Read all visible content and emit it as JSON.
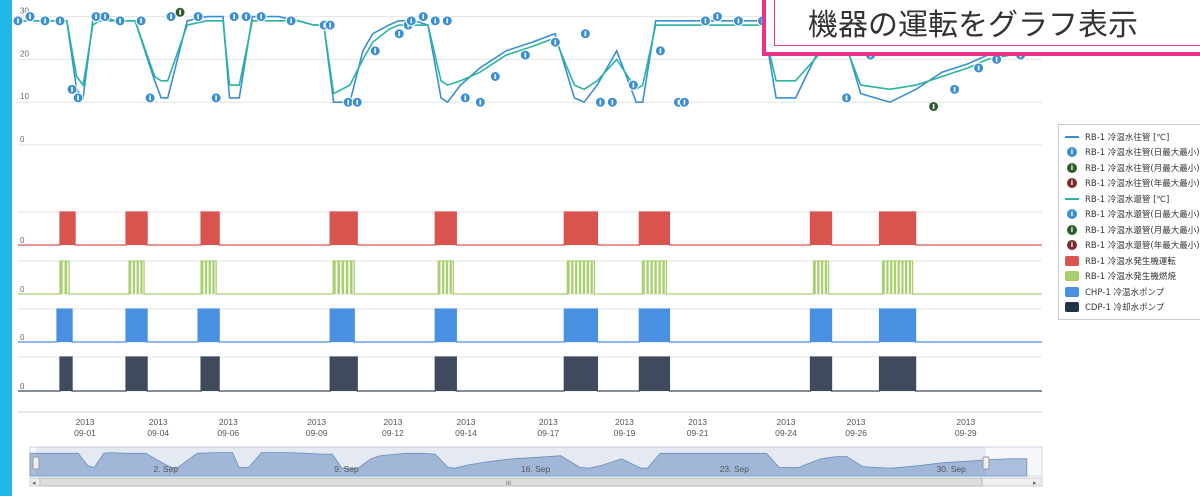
{
  "callout": {
    "text": "機器の運転をグラフ表示"
  },
  "legend": {
    "items": [
      {
        "label": "RB-1 冷温水往管 [℃]",
        "symbol": "line",
        "color": "#3a8fd4"
      },
      {
        "label": "RB-1 冷温水往管(日最大最小)",
        "symbol": "circle",
        "color": "#3a8fd4",
        "glyph": "i"
      },
      {
        "label": "RB-1 冷温水往管(月最大最小)",
        "symbol": "circle",
        "color": "#2f5a2a",
        "glyph": "i"
      },
      {
        "label": "RB-1 冷温水往管(年最大最小)",
        "symbol": "circle",
        "color": "#7a2a2a",
        "glyph": "i"
      },
      {
        "label": "RB-1 冷温水還管 [℃]",
        "symbol": "line",
        "color": "#2ab5a0"
      },
      {
        "label": "RB-1 冷温水還管(日最大最小)",
        "symbol": "circle",
        "color": "#3a8fd4",
        "glyph": "i"
      },
      {
        "label": "RB-1 冷温水還管(月最大最小)",
        "symbol": "circle",
        "color": "#2f5a2a",
        "glyph": "i"
      },
      {
        "label": "RB-1 冷温水還管(年最大最小)",
        "symbol": "circle",
        "color": "#7a2a2a",
        "glyph": "i"
      },
      {
        "label": "RB-1 冷温水発生機運転",
        "symbol": "rect",
        "color": "#d9534f"
      },
      {
        "label": "RB-1 冷温水発生機燃焼",
        "symbol": "rect",
        "color": "#a8cf6e"
      },
      {
        "label": "CHP-1 冷温水ポンプ",
        "symbol": "rect",
        "color": "#4a90e2"
      },
      {
        "label": "CDP-1 冷却水ポンプ",
        "symbol": "rect",
        "color": "#243246"
      }
    ]
  },
  "chart_data": {
    "type": "line",
    "x_range": [
      "2013-08-30",
      "2013-09-30"
    ],
    "temperature": {
      "y_ticks": [
        "30",
        "20",
        "10",
        "0"
      ],
      "ylim": [
        0,
        32
      ],
      "series": [
        {
          "color": "#3a8fd4",
          "x": [
            0,
            0.3,
            1.5,
            1.8,
            2.0,
            2.3,
            2.5,
            3.0,
            3.6,
            4.2,
            4.4,
            4.6,
            5.2,
            5.8,
            6.3,
            6.5,
            6.8,
            7.2,
            8.0,
            8.6,
            9.1,
            9.4,
            9.7,
            10.2,
            10.6,
            10.9,
            11.4,
            11.7,
            12.2,
            12.6,
            13.0,
            13.2,
            13.6,
            14.2,
            15.0,
            15.8,
            16.5,
            17.1,
            17.4,
            17.8,
            18.4,
            19.0,
            19.2,
            19.6,
            20.2,
            20.8,
            21.6,
            22.3,
            22.7,
            22.9,
            23.3,
            23.9,
            24.6,
            25.1,
            25.4,
            25.9,
            26.8,
            27.6,
            28.4,
            29.2,
            29.8,
            30.5,
            31.0
          ],
          "y": [
            29,
            29,
            29,
            13,
            11,
            29,
            30,
            29,
            29,
            15,
            11,
            11,
            29,
            30,
            30,
            11,
            11,
            30,
            30,
            29,
            28,
            28,
            10,
            10,
            22,
            26,
            28,
            29,
            29,
            28,
            11,
            10,
            14,
            18,
            22,
            24,
            26,
            11,
            10,
            14,
            22,
            10,
            10,
            29,
            29,
            29,
            29,
            29,
            29,
            29,
            11,
            11,
            22,
            25,
            25,
            12,
            10,
            13,
            17,
            19,
            21,
            22,
            22
          ]
        },
        {
          "color": "#2ab5a0",
          "x": [
            0,
            0.3,
            1.5,
            1.8,
            2.0,
            2.3,
            2.5,
            3.0,
            3.6,
            4.2,
            4.4,
            4.6,
            5.2,
            5.8,
            6.3,
            6.5,
            6.8,
            7.2,
            8.0,
            8.6,
            9.1,
            9.4,
            9.7,
            10.2,
            10.6,
            10.9,
            11.4,
            11.7,
            12.2,
            12.6,
            13.0,
            13.2,
            13.6,
            14.2,
            15.0,
            15.8,
            16.5,
            17.1,
            17.4,
            17.8,
            18.4,
            19.0,
            19.2,
            19.6,
            20.2,
            20.8,
            21.6,
            22.3,
            22.7,
            22.9,
            23.3,
            23.9,
            24.6,
            25.1,
            25.4,
            25.9,
            26.8,
            27.6,
            28.4,
            29.2,
            29.8,
            30.5,
            31.0
          ],
          "y": [
            29,
            29,
            29,
            16,
            14,
            28,
            29,
            29,
            29,
            16,
            15,
            15,
            28,
            29,
            29,
            14,
            14,
            29,
            29,
            29,
            28,
            28,
            12,
            14,
            20,
            24,
            27,
            28,
            28,
            28,
            15,
            14,
            15,
            17,
            21,
            23,
            25,
            14,
            13,
            15,
            20,
            13,
            14,
            28,
            28,
            28,
            28,
            28,
            28,
            28,
            15,
            15,
            21,
            24,
            24,
            14,
            13,
            14,
            16,
            18,
            20,
            21,
            21
          ]
        }
      ],
      "markers": [
        {
          "x": 0.0,
          "y": 29,
          "kind": "day"
        },
        {
          "x": 0.4,
          "y": 30,
          "kind": "day"
        },
        {
          "x": 0.9,
          "y": 29,
          "kind": "day"
        },
        {
          "x": 1.4,
          "y": 29,
          "kind": "day"
        },
        {
          "x": 1.8,
          "y": 13,
          "kind": "day"
        },
        {
          "x": 2.0,
          "y": 11,
          "kind": "day"
        },
        {
          "x": 2.6,
          "y": 30,
          "kind": "day"
        },
        {
          "x": 2.9,
          "y": 30,
          "kind": "day"
        },
        {
          "x": 3.4,
          "y": 29,
          "kind": "day"
        },
        {
          "x": 4.1,
          "y": 29,
          "kind": "day"
        },
        {
          "x": 4.4,
          "y": 11,
          "kind": "day"
        },
        {
          "x": 5.1,
          "y": 30,
          "kind": "day"
        },
        {
          "x": 5.4,
          "y": 31,
          "kind": "month"
        },
        {
          "x": 6.0,
          "y": 30,
          "kind": "day"
        },
        {
          "x": 6.6,
          "y": 11,
          "kind": "day"
        },
        {
          "x": 7.2,
          "y": 30,
          "kind": "day"
        },
        {
          "x": 7.6,
          "y": 30,
          "kind": "day"
        },
        {
          "x": 8.1,
          "y": 30,
          "kind": "day"
        },
        {
          "x": 9.1,
          "y": 29,
          "kind": "day"
        },
        {
          "x": 10.2,
          "y": 28,
          "kind": "day"
        },
        {
          "x": 10.4,
          "y": 28,
          "kind": "day"
        },
        {
          "x": 11.0,
          "y": 10,
          "kind": "day"
        },
        {
          "x": 11.3,
          "y": 10,
          "kind": "day"
        },
        {
          "x": 11.9,
          "y": 22,
          "kind": "day"
        },
        {
          "x": 12.7,
          "y": 26,
          "kind": "day"
        },
        {
          "x": 13.0,
          "y": 28,
          "kind": "day"
        },
        {
          "x": 13.1,
          "y": 29,
          "kind": "day"
        },
        {
          "x": 13.5,
          "y": 30,
          "kind": "day"
        },
        {
          "x": 13.9,
          "y": 29,
          "kind": "day"
        },
        {
          "x": 14.3,
          "y": 29,
          "kind": "day"
        },
        {
          "x": 14.9,
          "y": 11,
          "kind": "day"
        },
        {
          "x": 15.4,
          "y": 10,
          "kind": "day"
        },
        {
          "x": 15.9,
          "y": 16,
          "kind": "day"
        },
        {
          "x": 16.9,
          "y": 21,
          "kind": "day"
        },
        {
          "x": 17.9,
          "y": 24,
          "kind": "day"
        },
        {
          "x": 18.9,
          "y": 26,
          "kind": "day"
        },
        {
          "x": 19.4,
          "y": 10,
          "kind": "day"
        },
        {
          "x": 19.8,
          "y": 10,
          "kind": "day"
        },
        {
          "x": 20.5,
          "y": 14,
          "kind": "day"
        },
        {
          "x": 21.4,
          "y": 22,
          "kind": "day"
        },
        {
          "x": 22.0,
          "y": 10,
          "kind": "day"
        },
        {
          "x": 22.2,
          "y": 10,
          "kind": "day"
        },
        {
          "x": 22.9,
          "y": 29,
          "kind": "day"
        },
        {
          "x": 23.3,
          "y": 30,
          "kind": "day"
        },
        {
          "x": 24.0,
          "y": 29,
          "kind": "day"
        },
        {
          "x": 24.8,
          "y": 29,
          "kind": "day"
        },
        {
          "x": 27.6,
          "y": 11,
          "kind": "day"
        },
        {
          "x": 28.4,
          "y": 21,
          "kind": "day"
        },
        {
          "x": 29.1,
          "y": 25,
          "kind": "day"
        },
        {
          "x": 29.5,
          "y": 25,
          "kind": "day"
        },
        {
          "x": 30.5,
          "y": 9,
          "kind": "month"
        },
        {
          "x": 31.2,
          "y": 13,
          "kind": "day"
        },
        {
          "x": 32.0,
          "y": 18,
          "kind": "day"
        },
        {
          "x": 32.6,
          "y": 20,
          "kind": "day"
        },
        {
          "x": 33.4,
          "y": 21,
          "kind": "day"
        }
      ]
    },
    "status_series": [
      {
        "name": "RB-1 冷温水発生機運転",
        "color": "#d9534f",
        "y_tick": "0",
        "intervals": [
          [
            1.4,
            1.9
          ],
          [
            3.6,
            4.3
          ],
          [
            6.1,
            6.7
          ],
          [
            10.4,
            11.3
          ],
          [
            13.9,
            14.6
          ],
          [
            18.2,
            19.3
          ],
          [
            20.7,
            21.7
          ],
          [
            26.4,
            27.1
          ],
          [
            28.7,
            29.9
          ]
        ]
      },
      {
        "name": "RB-1 冷温水発生機燃焼",
        "color": "#a8cf6e",
        "y_tick": "0",
        "intervals": [
          [
            1.4,
            1.7
          ],
          [
            3.7,
            4.2
          ],
          [
            6.1,
            6.6
          ],
          [
            10.5,
            11.2
          ],
          [
            14.0,
            14.5
          ],
          [
            18.3,
            19.2
          ],
          [
            20.8,
            21.6
          ],
          [
            26.5,
            27.0
          ],
          [
            28.8,
            29.8
          ]
        ],
        "stripes": true
      },
      {
        "name": "CHP-1 冷温水ポンプ",
        "color": "#4a90e2",
        "y_tick": "0",
        "intervals": [
          [
            1.3,
            1.8
          ],
          [
            3.6,
            4.3
          ],
          [
            6.0,
            6.7
          ],
          [
            10.4,
            11.2
          ],
          [
            13.9,
            14.6
          ],
          [
            18.2,
            19.3
          ],
          [
            20.7,
            21.7
          ],
          [
            26.4,
            27.1
          ],
          [
            28.7,
            29.9
          ]
        ]
      },
      {
        "name": "CDP-1 冷却水ポンプ",
        "color": "#3f4a5c",
        "y_tick": "0",
        "intervals": [
          [
            1.4,
            1.8
          ],
          [
            3.6,
            4.3
          ],
          [
            6.1,
            6.7
          ],
          [
            10.4,
            11.3
          ],
          [
            13.9,
            14.6
          ],
          [
            18.2,
            19.3
          ],
          [
            20.7,
            21.7
          ],
          [
            26.4,
            27.1
          ],
          [
            28.7,
            29.9
          ]
        ]
      }
    ],
    "date_ticks": [
      {
        "pos": 2.2,
        "year": "2013",
        "date": "09-01"
      },
      {
        "pos": 4.6,
        "year": "2013",
        "date": "09-04"
      },
      {
        "pos": 6.9,
        "year": "2013",
        "date": "09-06"
      },
      {
        "pos": 9.8,
        "year": "2013",
        "date": "09-09"
      },
      {
        "pos": 12.3,
        "year": "2013",
        "date": "09-12"
      },
      {
        "pos": 14.7,
        "year": "2013",
        "date": "09-14"
      },
      {
        "pos": 17.4,
        "year": "2013",
        "date": "09-17"
      },
      {
        "pos": 19.9,
        "year": "2013",
        "date": "09-19"
      },
      {
        "pos": 22.3,
        "year": "2013",
        "date": "09-21"
      },
      {
        "pos": 25.2,
        "year": "2013",
        "date": "09-24"
      },
      {
        "pos": 27.5,
        "year": "2013",
        "date": "09-26"
      },
      {
        "pos": 31.1,
        "year": "2013",
        "date": "09-29"
      }
    ],
    "navigator": {
      "labels": [
        {
          "pos": 4.0,
          "text": "2. Sep"
        },
        {
          "pos": 10.0,
          "text": "9. Sep"
        },
        {
          "pos": 16.2,
          "text": "16. Sep"
        },
        {
          "pos": 22.8,
          "text": "23. Sep"
        },
        {
          "pos": 30.0,
          "text": "30. Sep"
        }
      ],
      "handle_glyph": "III",
      "left_arrow": "◂",
      "right_arrow": "▸"
    }
  }
}
